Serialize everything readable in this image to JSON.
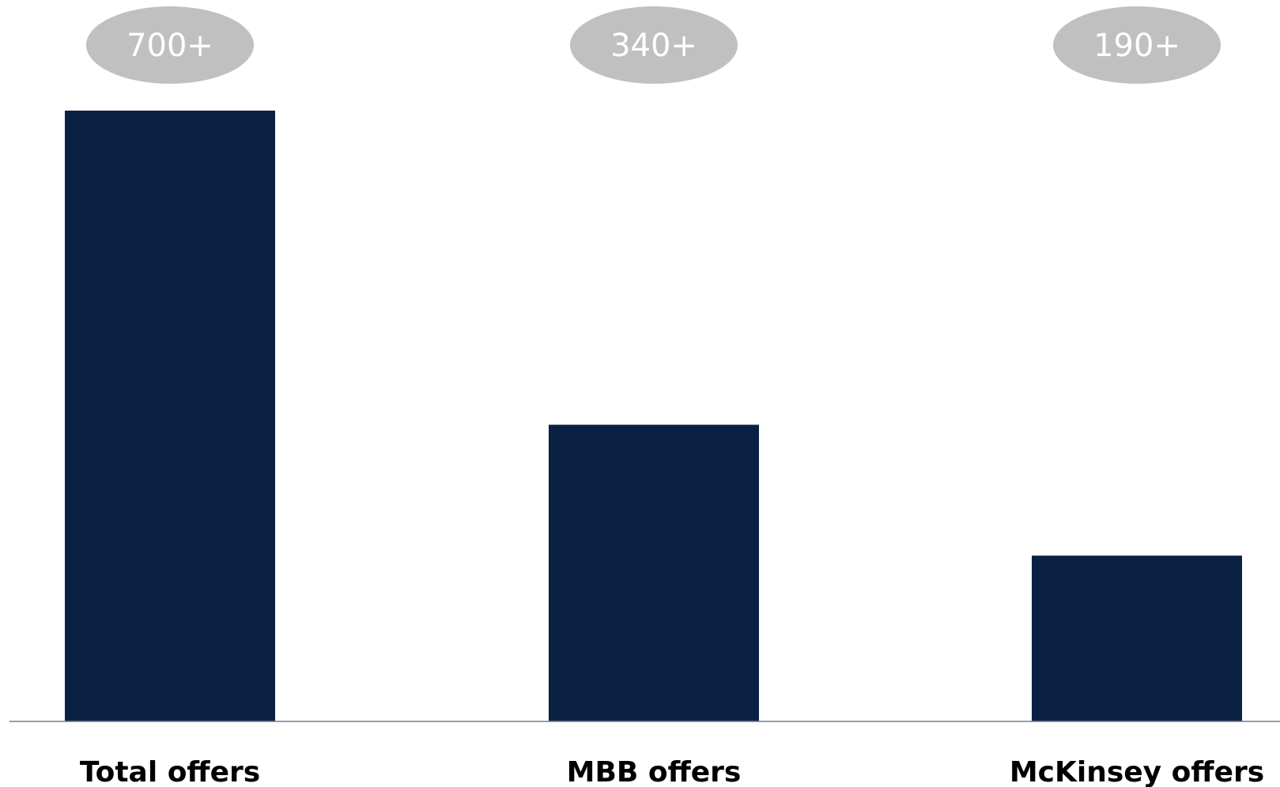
{
  "chart_data": {
    "type": "bar",
    "categories": [
      "Total offers",
      "MBB offers",
      "McKinsey offers"
    ],
    "values": [
      700,
      340,
      190
    ],
    "value_labels": [
      "700+",
      "340+",
      "190+"
    ],
    "title": "",
    "xlabel": "",
    "ylabel": "",
    "ylim": [
      0,
      700
    ],
    "grid": false,
    "legend": "none",
    "colors": {
      "bar": "#0a2144",
      "badge": "#c0c0c0",
      "badge_text": "#ffffff",
      "axis": "#7a7f8c",
      "label": "#000000"
    }
  }
}
